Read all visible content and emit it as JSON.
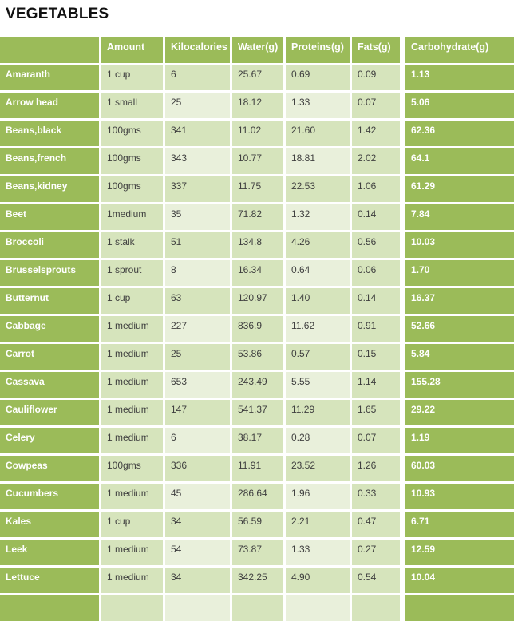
{
  "page": {
    "title": "VEGETABLES"
  },
  "table": {
    "columns": [
      "",
      "Amount",
      "Kilocalories",
      "Water(g)",
      "Proteins(g)",
      "Fats(g)",
      "Carbohydrate(g)"
    ],
    "rows": [
      [
        "Amaranth",
        "1 cup",
        "6",
        "25.67",
        "0.69",
        "0.09",
        "1.13"
      ],
      [
        "Arrow head",
        "1 small",
        "25",
        "18.12",
        "1.33",
        "0.07",
        "5.06"
      ],
      [
        "Beans,black",
        "100gms",
        "341",
        "11.02",
        "21.60",
        "1.42",
        "62.36"
      ],
      [
        "Beans,french",
        "100gms",
        "343",
        "10.77",
        "18.81",
        "2.02",
        "64.1"
      ],
      [
        "Beans,kidney",
        "100gms",
        "337",
        "11.75",
        "22.53",
        "1.06",
        "61.29"
      ],
      [
        "Beet",
        "1medium",
        "35",
        "71.82",
        "1.32",
        "0.14",
        "7.84"
      ],
      [
        "Broccoli",
        "1 stalk",
        "51",
        "134.8",
        "4.26",
        "0.56",
        "10.03"
      ],
      [
        "Brusselsprouts",
        "1 sprout",
        "8",
        "16.34",
        "0.64",
        "0.06",
        "1.70"
      ],
      [
        "Butternut",
        "1 cup",
        "63",
        "120.97",
        "1.40",
        "0.14",
        "16.37"
      ],
      [
        "Cabbage",
        "1 medium",
        "227",
        "836.9",
        "11.62",
        "0.91",
        "52.66"
      ],
      [
        "Carrot",
        "1 medium",
        "25",
        "53.86",
        "0.57",
        "0.15",
        "5.84"
      ],
      [
        "Cassava",
        "1 medium",
        "653",
        "243.49",
        "5.55",
        "1.14",
        "155.28"
      ],
      [
        "Cauliflower",
        "1 medium",
        "147",
        "541.37",
        "11.29",
        "1.65",
        "29.22"
      ],
      [
        "Celery",
        "1 medium",
        "6",
        "38.17",
        "0.28",
        "0.07",
        "1.19"
      ],
      [
        "Cowpeas",
        "100gms",
        "336",
        "11.91",
        "23.52",
        "1.26",
        "60.03"
      ],
      [
        "Cucumbers",
        "1 medium",
        "45",
        "286.64",
        "1.96",
        "0.33",
        "10.93"
      ],
      [
        "Kales",
        "1 cup",
        "34",
        "56.59",
        "2.21",
        "0.47",
        "6.71"
      ],
      [
        "Leek",
        "1 medium",
        "54",
        "73.87",
        "1.33",
        "0.27",
        "12.59"
      ],
      [
        "Lettuce",
        "1 medium",
        "34",
        "342.25",
        "4.90",
        "0.54",
        "10.04"
      ]
    ],
    "partial_row": [
      "",
      "",
      "",
      "",
      "",
      "",
      ""
    ]
  },
  "colors": {
    "header_green": "#9BBB59",
    "row_band_light": "#D6E4BC",
    "row_band_pale": "#E9F0DB",
    "data_text": "#3F3F3F",
    "header_text": "#FFFFFF",
    "title_text": "#111111",
    "background": "#FFFFFF"
  }
}
